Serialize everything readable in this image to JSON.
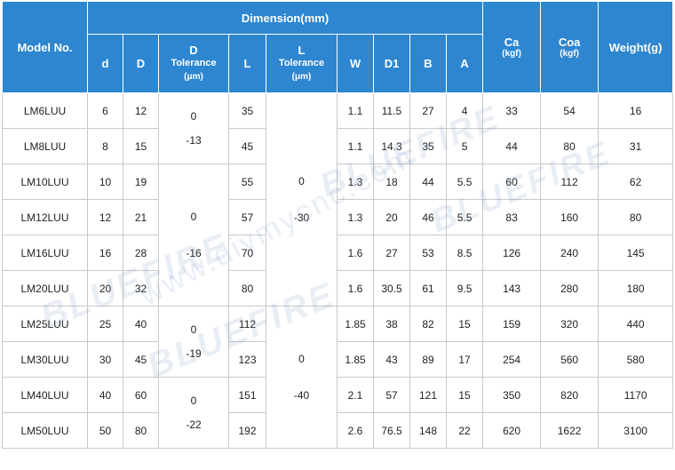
{
  "header": {
    "model": "Model No.",
    "dimension": "Dimension(mm)",
    "d": "d",
    "D": "D",
    "D_tol": [
      "D",
      "Tolerance",
      "(μm)"
    ],
    "L": "L",
    "L_tol": [
      "L",
      "Tolerance",
      "(μm)"
    ],
    "W": "W",
    "D1": "D1",
    "B": "B",
    "A": "A",
    "Ca": [
      "Ca",
      "(kgf)"
    ],
    "Coa": [
      "Coa",
      "(kgf)"
    ],
    "weight": "Weight(g)"
  },
  "rows": [
    {
      "model": "LM6LUU",
      "d": "6",
      "D": "12",
      "L": "35",
      "W": "1.1",
      "D1": "11.5",
      "B": "27",
      "A": "4",
      "Ca": "33",
      "Coa": "54",
      "weight": "16"
    },
    {
      "model": "LM8LUU",
      "d": "8",
      "D": "15",
      "L": "45",
      "W": "1.1",
      "D1": "14.3",
      "B": "35",
      "A": "5",
      "Ca": "44",
      "Coa": "80",
      "weight": "31"
    },
    {
      "model": "LM10LUU",
      "d": "10",
      "D": "19",
      "L": "55",
      "W": "1.3",
      "D1": "18",
      "B": "44",
      "A": "5.5",
      "Ca": "60",
      "Coa": "112",
      "weight": "62"
    },
    {
      "model": "LM12LUU",
      "d": "12",
      "D": "21",
      "L": "57",
      "W": "1.3",
      "D1": "20",
      "B": "46",
      "A": "5.5",
      "Ca": "83",
      "Coa": "160",
      "weight": "80"
    },
    {
      "model": "LM16LUU",
      "d": "16",
      "D": "28",
      "L": "70",
      "W": "1.6",
      "D1": "27",
      "B": "53",
      "A": "8.5",
      "Ca": "126",
      "Coa": "240",
      "weight": "145"
    },
    {
      "model": "LM20LUU",
      "d": "20",
      "D": "32",
      "L": "80",
      "W": "1.6",
      "D1": "30.5",
      "B": "61",
      "A": "9.5",
      "Ca": "143",
      "Coa": "280",
      "weight": "180"
    },
    {
      "model": "LM25LUU",
      "d": "25",
      "D": "40",
      "L": "112",
      "W": "1.85",
      "D1": "38",
      "B": "82",
      "A": "15",
      "Ca": "159",
      "Coa": "320",
      "weight": "440"
    },
    {
      "model": "LM30LUU",
      "d": "30",
      "D": "45",
      "L": "123",
      "W": "1.85",
      "D1": "43",
      "B": "89",
      "A": "17",
      "Ca": "254",
      "Coa": "560",
      "weight": "580"
    },
    {
      "model": "LM40LUU",
      "d": "40",
      "D": "60",
      "L": "151",
      "W": "2.1",
      "D1": "57",
      "B": "121",
      "A": "15",
      "Ca": "350",
      "Coa": "820",
      "weight": "1170"
    },
    {
      "model": "LM50LUU",
      "d": "50",
      "D": "80",
      "L": "192",
      "W": "2.6",
      "D1": "76.5",
      "B": "148",
      "A": "22",
      "Ca": "620",
      "Coa": "1622",
      "weight": "3100"
    }
  ],
  "d_tolerance": [
    {
      "upper": "0",
      "lower": "-13"
    },
    {
      "upper": "0",
      "lower": "-16"
    },
    {
      "upper": "0",
      "lower": "-19"
    },
    {
      "upper": "0",
      "lower": "-22"
    }
  ],
  "l_tolerance": [
    {
      "upper": "0",
      "lower": "-30"
    },
    {
      "upper": "0",
      "lower": "-40"
    }
  ],
  "watermarks": [
    "BLUEFIRE",
    "www.diymycnc.com"
  ]
}
